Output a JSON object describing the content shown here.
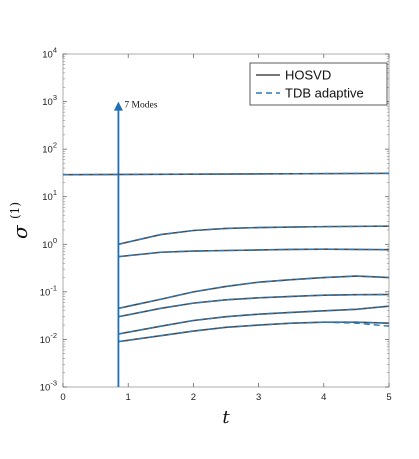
{
  "chart_data": {
    "type": "line",
    "xlabel": "t",
    "ylabel_main": "σ",
    "ylabel_sup": "(1)",
    "xlim": [
      0,
      5
    ],
    "ylim": [
      0.001,
      10000
    ],
    "yscale": "log",
    "xticks": [
      {
        "value": 0,
        "label": "0"
      },
      {
        "value": 1,
        "label": "1"
      },
      {
        "value": 2,
        "label": "2"
      },
      {
        "value": 3,
        "label": "3"
      },
      {
        "value": 4,
        "label": "4"
      },
      {
        "value": 5,
        "label": "5"
      }
    ],
    "yticks": [
      {
        "value": 0.001,
        "base": "10",
        "exp": "-3"
      },
      {
        "value": 0.01,
        "base": "10",
        "exp": "-2"
      },
      {
        "value": 0.1,
        "base": "10",
        "exp": "-1"
      },
      {
        "value": 1,
        "base": "10",
        "exp": "0"
      },
      {
        "value": 10,
        "base": "10",
        "exp": "1"
      },
      {
        "value": 100,
        "base": "10",
        "exp": "2"
      },
      {
        "value": 1000,
        "base": "10",
        "exp": "3"
      },
      {
        "value": 10000,
        "base": "10",
        "exp": "4"
      }
    ],
    "grid": false,
    "legend_position": "top-right",
    "legend": [
      {
        "label": "HOSVD",
        "color": "#4a4a4a",
        "dash": "solid"
      },
      {
        "label": "TDB adaptive",
        "color": "#2e7ab8",
        "dash": "dashed"
      }
    ],
    "annotation": {
      "text": "7 Modes",
      "x": 0.85,
      "y_from": 0.001,
      "y_to": 1000
    },
    "t": [
      0.85,
      1.5,
      2,
      2.5,
      3,
      3.5,
      4,
      4.5,
      5
    ],
    "top_mode": {
      "t": [
        0,
        5
      ],
      "values": [
        29,
        31
      ]
    },
    "modes": [
      [
        1.0,
        1.6,
        1.95,
        2.15,
        2.25,
        2.3,
        2.35,
        2.38,
        2.4
      ],
      [
        0.55,
        0.68,
        0.72,
        0.74,
        0.76,
        0.78,
        0.79,
        0.78,
        0.77
      ],
      [
        0.045,
        0.07,
        0.1,
        0.13,
        0.16,
        0.18,
        0.2,
        0.215,
        0.2
      ],
      [
        0.03,
        0.045,
        0.058,
        0.068,
        0.075,
        0.08,
        0.085,
        0.087,
        0.088
      ],
      [
        0.013,
        0.019,
        0.025,
        0.03,
        0.034,
        0.037,
        0.04,
        0.043,
        0.05
      ],
      [
        0.009,
        0.012,
        0.015,
        0.018,
        0.02,
        0.022,
        0.023,
        0.023,
        0.022
      ]
    ],
    "tdb_divergence": {
      "t": [
        4.0,
        4.5,
        5
      ],
      "values": [
        0.023,
        0.022,
        0.019
      ]
    },
    "colors": {
      "hosvd": "#4a4a4a",
      "tdb": "#2e7ab8",
      "arrow": "#1f6fb5",
      "axis": "#9a9a9a"
    }
  }
}
